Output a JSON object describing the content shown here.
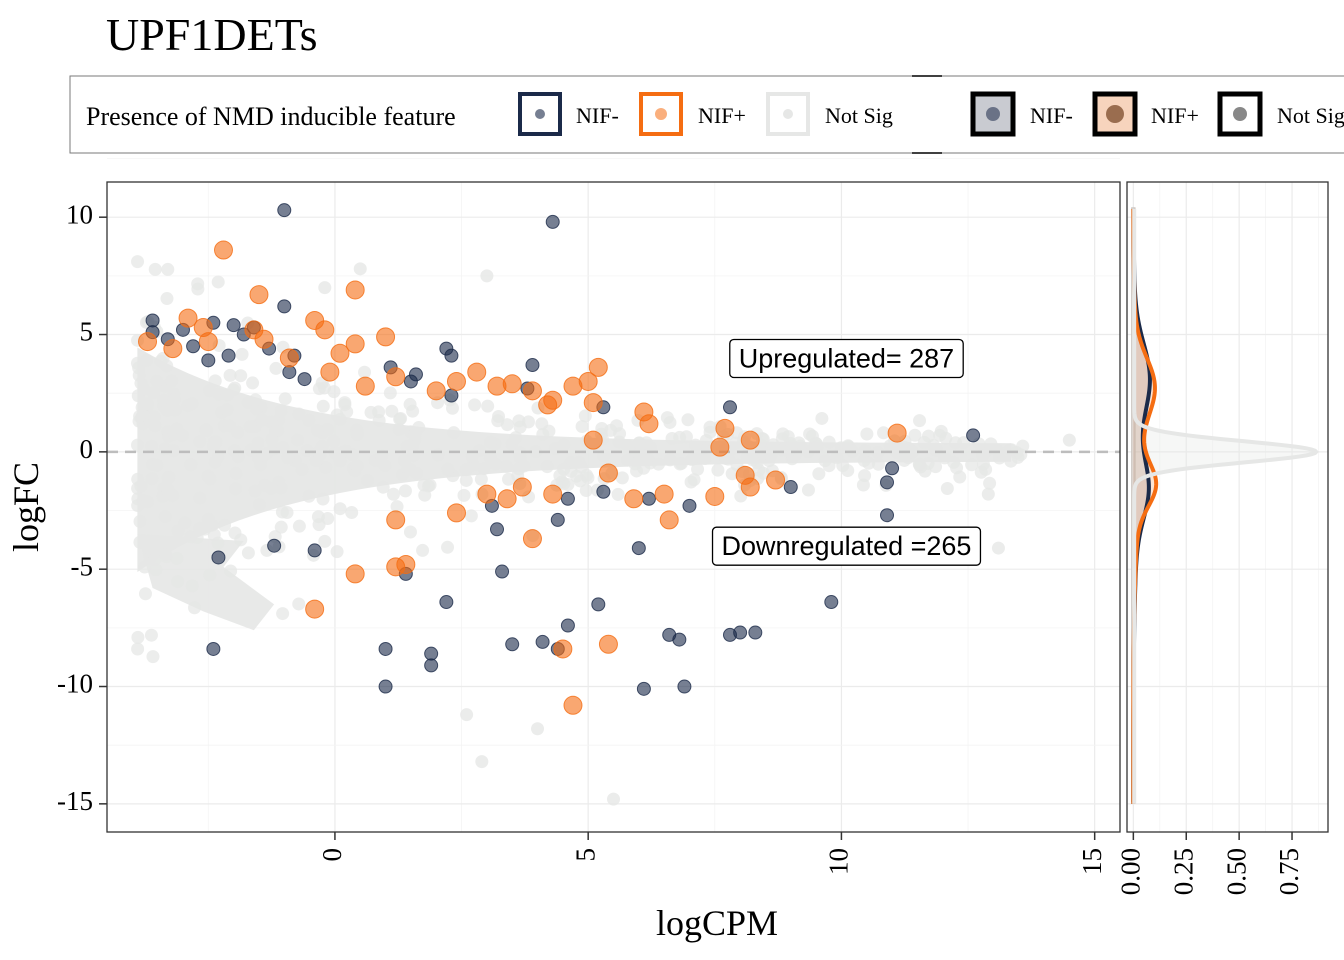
{
  "chart_data": {
    "type": "scatter",
    "title": "UPF1DETs",
    "xlabel": "logCPM",
    "ylabel": "logFC",
    "xlim": [
      -4.5,
      15.5
    ],
    "ylim": [
      -16.2,
      11.5
    ],
    "x_ticks": [
      "0",
      "5",
      "10",
      "15"
    ],
    "y_ticks": [
      "10",
      "5",
      "0",
      "-5",
      "-10",
      "-15"
    ],
    "hline_y": 0,
    "legend": {
      "title": "Presence of NMD inducible feature",
      "position": "top",
      "items": [
        "NIF-",
        "NIF+",
        "Not Sig"
      ],
      "density_items": [
        "NIF-",
        "NIF+",
        "Not Sig"
      ]
    },
    "colors": {
      "nif_minus": "#1b2a49",
      "nif_plus": "#f56d12",
      "not_sig": "#e6e7e6"
    },
    "annotations": [
      {
        "label": "Upregulated= 287",
        "x": 10.1,
        "y": 3.9
      },
      {
        "label": "Downregulated =265",
        "x": 10.1,
        "y": -4.1
      }
    ],
    "series": [
      {
        "name": "NIF-",
        "points": [
          [
            -1,
            10.3
          ],
          [
            4.3,
            9.8
          ],
          [
            -1,
            6.2
          ],
          [
            -3.6,
            5.6
          ],
          [
            -3,
            5.2
          ],
          [
            -2.4,
            5.5
          ],
          [
            -2,
            5.4
          ],
          [
            -1.6,
            5.3
          ],
          [
            -3.3,
            4.8
          ],
          [
            -2.8,
            4.5
          ],
          [
            -2.1,
            4.1
          ],
          [
            -1.3,
            4.4
          ],
          [
            -0.8,
            4.1
          ],
          [
            2.2,
            4.4
          ],
          [
            2.3,
            4.1
          ],
          [
            3.9,
            3.7
          ],
          [
            1.6,
            3.3
          ],
          [
            1.5,
            3.0
          ],
          [
            2.3,
            2.4
          ],
          [
            3.8,
            2.7
          ],
          [
            5.3,
            1.9
          ],
          [
            7.8,
            1.9
          ],
          [
            12.6,
            0.7
          ],
          [
            -1.8,
            5.0
          ],
          [
            -0.6,
            3.1
          ],
          [
            1.1,
            3.6
          ],
          [
            11,
            -0.7
          ],
          [
            10.9,
            -1.3
          ],
          [
            9,
            -1.5
          ],
          [
            7.0,
            -2.3
          ],
          [
            6.2,
            -2.0
          ],
          [
            5.3,
            -1.7
          ],
          [
            4.6,
            -2.0
          ],
          [
            3.1,
            -2.3
          ],
          [
            4.4,
            -2.9
          ],
          [
            3.2,
            -3.3
          ],
          [
            -2.3,
            -4.5
          ],
          [
            -1.2,
            -4.0
          ],
          [
            -0.4,
            -4.2
          ],
          [
            1.4,
            -5.2
          ],
          [
            3.3,
            -5.1
          ],
          [
            6,
            -4.1
          ],
          [
            10.9,
            -2.7
          ],
          [
            2.2,
            -6.4
          ],
          [
            5.2,
            -6.5
          ],
          [
            4.6,
            -7.4
          ],
          [
            9.8,
            -6.4
          ],
          [
            6.6,
            -7.8
          ],
          [
            6.8,
            -8.0
          ],
          [
            7.8,
            -7.8
          ],
          [
            8.3,
            -7.7
          ],
          [
            8,
            -7.7
          ],
          [
            3.5,
            -8.2
          ],
          [
            4.1,
            -8.1
          ],
          [
            4.4,
            -8.4
          ],
          [
            -2.4,
            -8.4
          ],
          [
            1,
            -8.4
          ],
          [
            1.9,
            -8.6
          ],
          [
            1,
            -10.0
          ],
          [
            6.1,
            -10.1
          ],
          [
            6.9,
            -10.0
          ],
          [
            1.9,
            -9.1
          ],
          [
            -0.9,
            3.4
          ],
          [
            -3.6,
            5.1
          ],
          [
            -2.5,
            3.9
          ]
        ]
      },
      {
        "name": "NIF+",
        "points": [
          [
            -2.2,
            8.6
          ],
          [
            -1.5,
            6.7
          ],
          [
            0.4,
            6.9
          ],
          [
            -2.9,
            5.7
          ],
          [
            -2.6,
            5.3
          ],
          [
            -0.2,
            5.2
          ],
          [
            -0.4,
            5.6
          ],
          [
            1.0,
            4.9
          ],
          [
            -1.4,
            4.8
          ],
          [
            -3.7,
            4.7
          ],
          [
            -3.2,
            4.4
          ],
          [
            -2.5,
            4.7
          ],
          [
            0.4,
            4.6
          ],
          [
            -0.9,
            4.0
          ],
          [
            0.1,
            4.2
          ],
          [
            2.8,
            3.4
          ],
          [
            1.2,
            3.2
          ],
          [
            5.2,
            3.6
          ],
          [
            3.5,
            2.9
          ],
          [
            4.7,
            2.8
          ],
          [
            5.0,
            3.0
          ],
          [
            2.0,
            2.6
          ],
          [
            3.9,
            2.6
          ],
          [
            4.3,
            2.2
          ],
          [
            0.6,
            2.8
          ],
          [
            2.4,
            3.0
          ],
          [
            6.1,
            1.7
          ],
          [
            5.1,
            2.1
          ],
          [
            4.2,
            2.0
          ],
          [
            6.2,
            1.2
          ],
          [
            7.7,
            1.0
          ],
          [
            8.2,
            0.5
          ],
          [
            11.1,
            0.8
          ],
          [
            7.6,
            0.2
          ],
          [
            5.4,
            -0.9
          ],
          [
            6.5,
            -1.8
          ],
          [
            7.5,
            -1.9
          ],
          [
            8.1,
            -1.0
          ],
          [
            8.7,
            -1.2
          ],
          [
            8.2,
            -1.5
          ],
          [
            6.6,
            -2.9
          ],
          [
            5.9,
            -2.0
          ],
          [
            4.3,
            -1.8
          ],
          [
            3.7,
            -1.5
          ],
          [
            3.0,
            -1.8
          ],
          [
            2.4,
            -2.6
          ],
          [
            3.9,
            -3.7
          ],
          [
            1.2,
            -2.9
          ],
          [
            0.4,
            -5.2
          ],
          [
            1.2,
            -4.9
          ],
          [
            1.4,
            -4.8
          ],
          [
            -0.4,
            -6.7
          ],
          [
            4.5,
            -8.4
          ],
          [
            5.4,
            -8.2
          ],
          [
            4.7,
            -10.8
          ],
          [
            3.4,
            -2.0
          ],
          [
            -1.6,
            5.2
          ],
          [
            -0.1,
            3.4
          ],
          [
            3.2,
            2.8
          ],
          [
            5.1,
            0.5
          ]
        ]
      }
    ],
    "density_panel": {
      "xlim": [
        -0.03,
        0.92
      ],
      "ylim": [
        -16.2,
        11.5
      ],
      "x_ticks": [
        "0.00",
        "0.25",
        "0.50",
        "0.75"
      ],
      "curves": [
        {
          "name": "Not Sig",
          "mean": 0,
          "sd": 0.45,
          "peak": 0.86
        },
        {
          "name": "NIF+",
          "peaks": [
            {
              "mean": 2.8,
              "sd": 1.2,
              "height": 0.08
            },
            {
              "mean": -1.4,
              "sd": 0.9,
              "height": 0.08
            }
          ],
          "base_sd": 3.5,
          "base_height": 0.03
        },
        {
          "name": "NIF-",
          "peaks": [
            {
              "mean": 3.2,
              "sd": 1.4,
              "height": 0.06
            },
            {
              "mean": -1.6,
              "sd": 1.2,
              "height": 0.05
            }
          ],
          "base_sd": 4,
          "base_height": 0.025
        }
      ]
    }
  }
}
